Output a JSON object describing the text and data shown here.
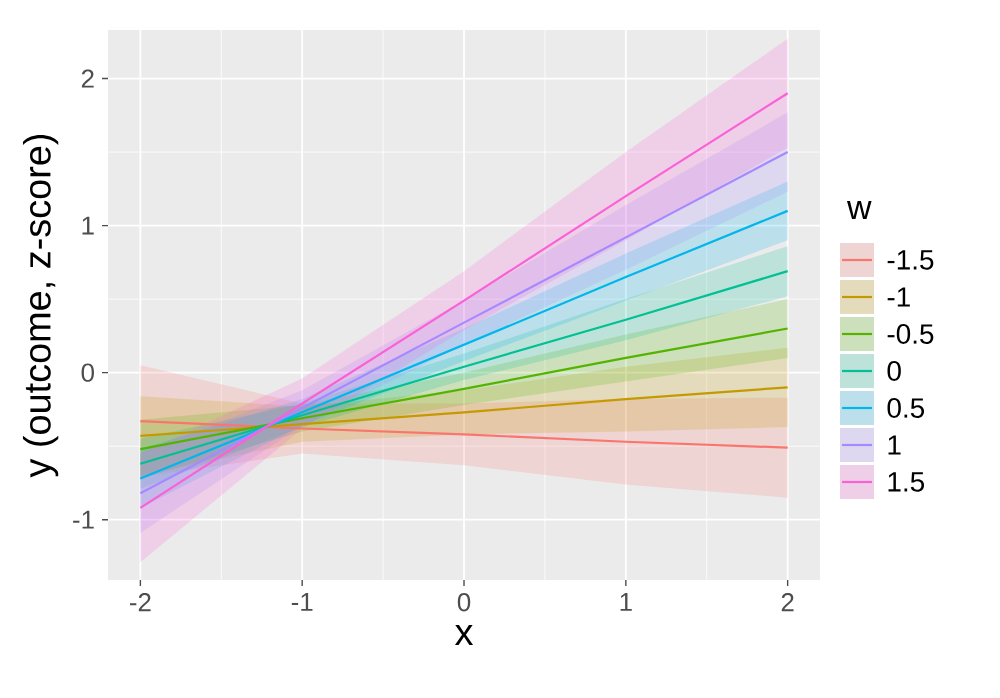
{
  "chart_data": {
    "type": "line",
    "xlabel": "x",
    "ylabel": "y (outcome, z-score)",
    "legend_title": "w",
    "legend": "right",
    "grid": true,
    "xlim": [
      -2.2,
      2.2
    ],
    "ylim": [
      -1.41,
      2.33
    ],
    "xticks": [
      -2,
      -1,
      0,
      1,
      2
    ],
    "yticks": [
      -1,
      0,
      1,
      2
    ],
    "series": [
      {
        "name": "-1.5",
        "color": "#F8766D",
        "x": [
          -2,
          -1,
          0,
          1,
          2
        ],
        "values": [
          -0.33,
          -0.38,
          -0.42,
          -0.47,
          -0.51
        ],
        "lower": [
          -0.71,
          -0.55,
          -0.63,
          -0.76,
          -0.85
        ],
        "upper": [
          0.05,
          -0.21,
          -0.21,
          -0.18,
          -0.17
        ]
      },
      {
        "name": "-1",
        "color": "#C49A00",
        "x": [
          -2,
          -1,
          0,
          1,
          2
        ],
        "values": [
          -0.43,
          -0.35,
          -0.27,
          -0.18,
          -0.1
        ],
        "lower": [
          -0.7,
          -0.47,
          -0.42,
          -0.4,
          -0.37
        ],
        "upper": [
          -0.16,
          -0.23,
          -0.12,
          0.04,
          0.17
        ]
      },
      {
        "name": "-0.5",
        "color": "#53B400",
        "x": [
          -2,
          -1,
          0,
          1,
          2
        ],
        "values": [
          -0.52,
          -0.31,
          -0.11,
          0.1,
          0.3
        ],
        "lower": [
          -0.72,
          -0.4,
          -0.22,
          -0.06,
          0.1
        ],
        "upper": [
          -0.32,
          -0.22,
          0.0,
          0.26,
          0.5
        ]
      },
      {
        "name": "0",
        "color": "#00C094",
        "x": [
          -2,
          -1,
          0,
          1,
          2
        ],
        "values": [
          -0.62,
          -0.29,
          0.04,
          0.36,
          0.69
        ],
        "lower": [
          -0.79,
          -0.37,
          -0.05,
          0.22,
          0.52
        ],
        "upper": [
          -0.45,
          -0.21,
          0.13,
          0.5,
          0.86
        ]
      },
      {
        "name": "0.5",
        "color": "#00B6EB",
        "x": [
          -2,
          -1,
          0,
          1,
          2
        ],
        "values": [
          -0.72,
          -0.27,
          0.19,
          0.65,
          1.1
        ],
        "lower": [
          -0.92,
          -0.36,
          0.08,
          0.49,
          0.9
        ],
        "upper": [
          -0.52,
          -0.18,
          0.3,
          0.81,
          1.3
        ]
      },
      {
        "name": "1",
        "color": "#A58AFF",
        "x": [
          -2,
          -1,
          0,
          1,
          2
        ],
        "values": [
          -0.82,
          -0.24,
          0.34,
          0.92,
          1.5
        ],
        "lower": [
          -1.09,
          -0.36,
          0.19,
          0.7,
          1.23
        ],
        "upper": [
          -0.55,
          -0.12,
          0.49,
          1.14,
          1.77
        ]
      },
      {
        "name": "1.5",
        "color": "#FB61D7",
        "x": [
          -2,
          -1,
          0,
          1,
          2
        ],
        "values": [
          -0.92,
          -0.21,
          0.49,
          1.2,
          1.9
        ],
        "lower": [
          -1.29,
          -0.38,
          0.29,
          0.9,
          1.53
        ],
        "upper": [
          -0.55,
          -0.04,
          0.69,
          1.5,
          2.27
        ]
      }
    ]
  }
}
